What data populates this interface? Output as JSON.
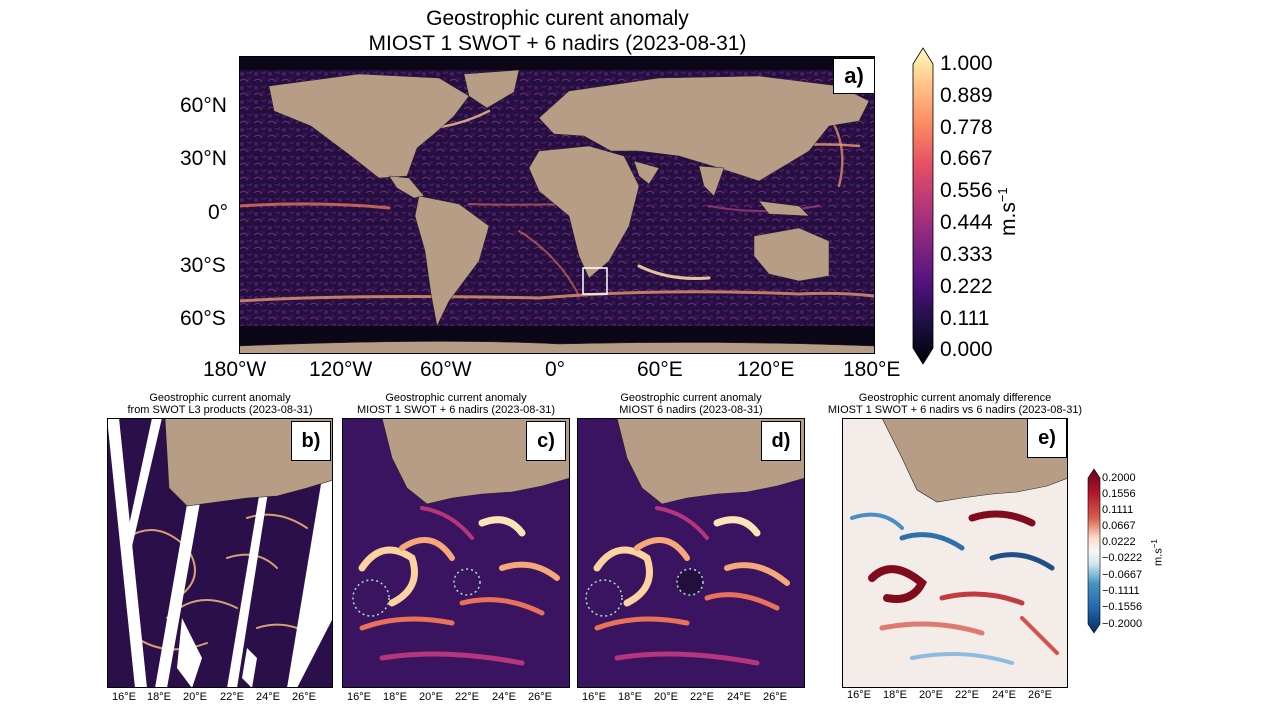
{
  "main": {
    "title_line1": "Geostrophic curent anomaly",
    "title_line2": "MIOST 1 SWOT + 6 nadirs (2023-08-31)",
    "panel_label": "a)",
    "lat_ticks": [
      "60°N",
      "30°N",
      "0°",
      "30°S",
      "60°S"
    ],
    "lon_ticks": [
      "180°W",
      "120°W",
      "60°W",
      "0°",
      "60°E",
      "120°E",
      "180°E"
    ]
  },
  "colorbar_main": {
    "ticks": [
      "1.000",
      "0.889",
      "0.778",
      "0.667",
      "0.556",
      "0.444",
      "0.333",
      "0.222",
      "0.111",
      "0.000"
    ],
    "unit": "m.s",
    "unit_exp": "−1",
    "colormap": "magma",
    "vmin": 0.0,
    "vmax": 1.0
  },
  "panels": [
    {
      "id": "b",
      "label": "b)",
      "title_line1": "Geostrophic current anomaly",
      "title_line2": "from SWOT L3 products (2023-08-31)"
    },
    {
      "id": "c",
      "label": "c)",
      "title_line1": "Geostrophic current anomaly",
      "title_line2": "MIOST 1 SWOT + 6 nadirs (2023-08-31)"
    },
    {
      "id": "d",
      "label": "d)",
      "title_line1": "Geostrophic current anomaly",
      "title_line2": "MIOST 6 nadirs (2023-08-31)"
    },
    {
      "id": "e",
      "label": "e)",
      "title_line1": "Geostrophic current anomaly difference",
      "title_line2": "MIOST 1 SWOT + 6 nadirs vs 6 nadirs (2023-08-31)"
    }
  ],
  "small_lon_ticks": [
    "16°E",
    "18°E",
    "20°E",
    "22°E",
    "24°E",
    "26°E"
  ],
  "colorbar_diff": {
    "ticks": [
      "0.2000",
      "0.1556",
      "0.1111",
      "0.0667",
      "0.0222",
      "−0.0222",
      "−0.0667",
      "−0.1111",
      "−0.1556",
      "−0.2000"
    ],
    "unit": "m.s",
    "unit_exp": "−1",
    "colormap": "RdBu_r",
    "vmin": -0.2,
    "vmax": 0.2
  },
  "colors": {
    "land": "#b89d86",
    "ocean_dark": "#1a0b2e",
    "eddy_bright": "#fcd9a0",
    "highlight_box": "#ffffff",
    "eddy_circle": "#a8e0c8"
  }
}
